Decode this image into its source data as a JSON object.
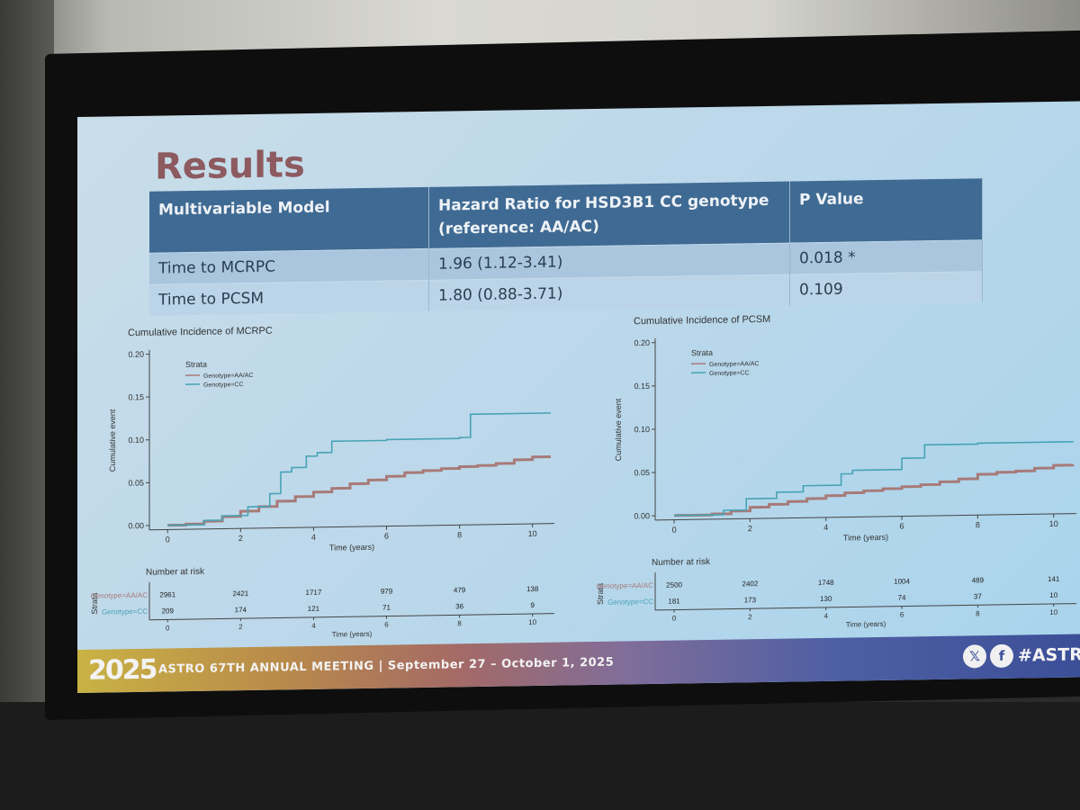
{
  "slide": {
    "title": "Results",
    "table": {
      "headers": [
        "Multivariable Model",
        "Hazard Ratio for HSD3B1 CC genotype (reference: AA/AC)",
        "P Value"
      ],
      "rows": [
        [
          "Time to MCRPC",
          "1.96 (1.12-3.41)",
          "0.018 *"
        ],
        [
          "Time to PCSM",
          "1.80 (0.88-3.71)",
          "0.109"
        ]
      ]
    },
    "footer": {
      "logo": "2025",
      "meeting": "ASTRO 67TH ANNUAL MEETING  |  September 27 – October 1, 2025",
      "x_icon": "𝕏",
      "facebook_icon": "f",
      "hashtag": "#ASTRO"
    }
  },
  "colors": {
    "aa_ac": "#a77a78",
    "cc": "#47a3b5",
    "header_bg": "#3f6a93",
    "title": "#8c5a5f"
  },
  "chart_data": [
    {
      "type": "line",
      "title": "Cumulative Incidence of MCRPC",
      "xlabel": "Time (years)",
      "ylabel": "Cumulative event",
      "xlim": [
        -0.5,
        10.6
      ],
      "ylim": [
        -0.005,
        0.205
      ],
      "xticks": [
        0,
        2,
        4,
        6,
        8,
        10
      ],
      "yticks": [
        "0.00",
        "0.05",
        "0.10",
        "0.15",
        "0.20"
      ],
      "legend_title": "Strata",
      "legend_position": "top-left",
      "series": [
        {
          "name": "Genotype=AA/AC",
          "color": "#a77a78",
          "x": [
            0,
            0.5,
            1,
            1.5,
            2,
            2.5,
            3,
            3.5,
            4,
            4.5,
            5,
            5.5,
            6,
            6.5,
            7,
            7.5,
            8,
            8.5,
            9,
            9.5,
            10,
            10.5
          ],
          "y": [
            0,
            0.001,
            0.004,
            0.009,
            0.015,
            0.02,
            0.026,
            0.031,
            0.036,
            0.04,
            0.045,
            0.049,
            0.053,
            0.057,
            0.059,
            0.061,
            0.063,
            0.064,
            0.066,
            0.07,
            0.073,
            0.073
          ]
        },
        {
          "name": "Genotype=CC",
          "color": "#47a3b5",
          "x": [
            0,
            1,
            1.5,
            2.2,
            2.8,
            3.1,
            3.4,
            3.8,
            4.1,
            4.5,
            6,
            8,
            8.3,
            10.5
          ],
          "y": [
            0,
            0.005,
            0.01,
            0.02,
            0.035,
            0.06,
            0.065,
            0.078,
            0.082,
            0.095,
            0.096,
            0.097,
            0.124,
            0.124
          ]
        }
      ],
      "risk_table": {
        "title": "Number at risk",
        "strata_label": "Strata",
        "xlabel": "Time (years)",
        "times": [
          0,
          2,
          4,
          6,
          8,
          10
        ],
        "rows": [
          {
            "label": "Genotype=AA/AC",
            "values": [
              "2961",
              "2421",
              "1717",
              "979",
              "479",
              "138"
            ]
          },
          {
            "label": "Genotype=CC",
            "values": [
              "209",
              "174",
              "121",
              "71",
              "36",
              "9"
            ]
          }
        ]
      }
    },
    {
      "type": "line",
      "title": "Cumulative Incidence of PCSM",
      "xlabel": "Time (years)",
      "ylabel": "Cumulative event",
      "xlim": [
        -0.5,
        10.6
      ],
      "ylim": [
        -0.005,
        0.205
      ],
      "xticks": [
        0,
        2,
        4,
        6,
        8,
        10
      ],
      "yticks": [
        "0.00",
        "0.05",
        "0.10",
        "0.15",
        "0.20"
      ],
      "legend_title": "Strata",
      "legend_position": "top-left",
      "series": [
        {
          "name": "Genotype=AA/AC",
          "color": "#a77a78",
          "x": [
            0,
            1,
            1.5,
            2,
            2.5,
            3,
            3.5,
            4,
            4.5,
            5,
            5.5,
            6,
            6.5,
            7,
            7.5,
            8,
            8.5,
            9,
            9.5,
            10,
            10.5
          ],
          "y": [
            0,
            0.001,
            0.004,
            0.008,
            0.011,
            0.014,
            0.017,
            0.02,
            0.023,
            0.025,
            0.027,
            0.029,
            0.031,
            0.034,
            0.037,
            0.042,
            0.044,
            0.045,
            0.048,
            0.051,
            0.052
          ]
        },
        {
          "name": "Genotype=CC",
          "color": "#47a3b5",
          "x": [
            0,
            1.3,
            1.9,
            2.7,
            3.4,
            4.4,
            4.7,
            6,
            6.6,
            8,
            10.5
          ],
          "y": [
            0,
            0.005,
            0.018,
            0.025,
            0.032,
            0.045,
            0.049,
            0.062,
            0.077,
            0.078,
            0.079
          ]
        }
      ],
      "risk_table": {
        "title": "Number at risk",
        "strata_label": "Strata",
        "xlabel": "Time (years)",
        "times": [
          0,
          2,
          4,
          6,
          8,
          10
        ],
        "rows": [
          {
            "label": "Genotype=AA/AC",
            "values": [
              "2500",
              "2402",
              "1748",
              "1004",
              "489",
              "141"
            ]
          },
          {
            "label": "Genotype=CC",
            "values": [
              "181",
              "173",
              "130",
              "74",
              "37",
              "10"
            ]
          }
        ]
      }
    }
  ]
}
